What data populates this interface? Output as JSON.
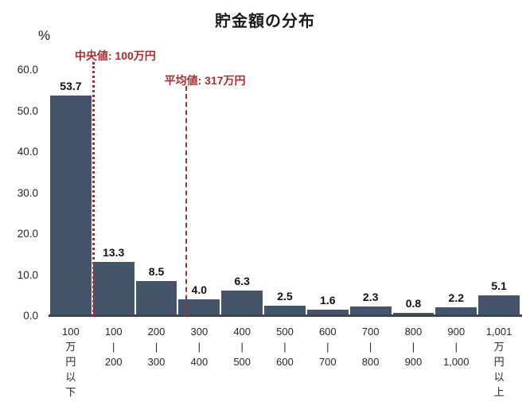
{
  "title": "貯金額の分布",
  "unit_label": "%",
  "colors": {
    "bar": "#44546A",
    "axis_line": "#384557",
    "annotation_red": "#B02B2B",
    "text": "#262626"
  },
  "chart_data": {
    "type": "bar",
    "title": "貯金額の分布",
    "ylabel": "%",
    "xlabel": "",
    "ylim": [
      0,
      60
    ],
    "ytick_step": 10,
    "grid": false,
    "legend": "none",
    "bin_width_man_yen": 100,
    "categories": [
      [
        "100",
        "万",
        "円",
        "以",
        "下"
      ],
      [
        "100",
        "|",
        "200"
      ],
      [
        "200",
        "|",
        "300"
      ],
      [
        "300",
        "|",
        "400"
      ],
      [
        "400",
        "|",
        "500"
      ],
      [
        "500",
        "|",
        "600"
      ],
      [
        "600",
        "|",
        "700"
      ],
      [
        "700",
        "|",
        "800"
      ],
      [
        "800",
        "|",
        "900"
      ],
      [
        "900",
        "|",
        "1,000"
      ],
      [
        "1,001",
        "万",
        "円",
        "以",
        "上"
      ]
    ],
    "values": [
      53.7,
      13.3,
      8.5,
      4.0,
      6.3,
      2.5,
      1.6,
      2.3,
      0.8,
      2.2,
      5.1
    ],
    "annotations": [
      {
        "name": "median",
        "label": "中央値: 100万円",
        "value_man_yen": 100,
        "line_style": "dotted"
      },
      {
        "name": "mean",
        "label": "平均値: 317万円",
        "value_man_yen": 317,
        "line_style": "dashed"
      }
    ]
  }
}
